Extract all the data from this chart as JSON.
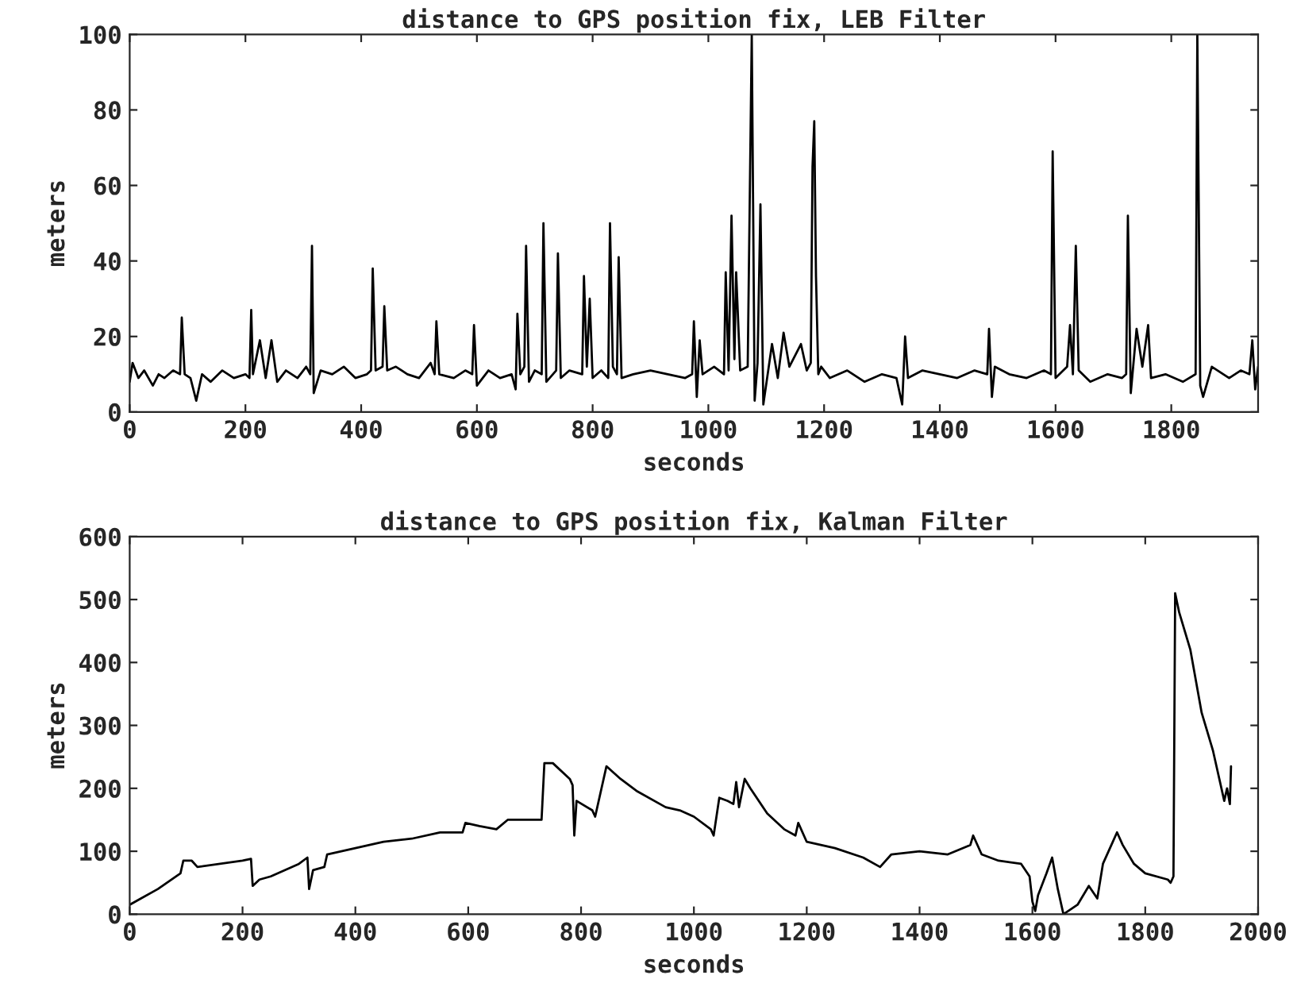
{
  "chart_data": [
    {
      "type": "line",
      "title": "distance to GPS position fix, LEB Filter",
      "xlabel": "seconds",
      "ylabel": "meters",
      "xlim": [
        0,
        1950
      ],
      "ylim": [
        0,
        100
      ],
      "xticks": [
        0,
        200,
        400,
        600,
        800,
        1000,
        1200,
        1400,
        1600,
        1800
      ],
      "yticks": [
        0,
        20,
        40,
        60,
        80,
        100
      ],
      "grid": false,
      "marker": "none",
      "line_style": "solid",
      "series": [
        {
          "color": "#000000",
          "x": [
            0,
            5,
            15,
            25,
            40,
            50,
            60,
            75,
            87,
            90,
            95,
            105,
            115,
            125,
            140,
            160,
            180,
            200,
            207,
            210,
            213,
            225,
            235,
            245,
            255,
            270,
            290,
            305,
            312,
            315,
            318,
            330,
            350,
            370,
            390,
            410,
            417,
            420,
            425,
            437,
            440,
            445,
            460,
            480,
            500,
            520,
            527,
            530,
            535,
            560,
            580,
            592,
            595,
            600,
            620,
            640,
            660,
            667,
            670,
            675,
            682,
            685,
            690,
            700,
            712,
            715,
            720,
            737,
            740,
            745,
            760,
            782,
            785,
            790,
            795,
            800,
            815,
            827,
            830,
            835,
            842,
            845,
            850,
            870,
            900,
            930,
            960,
            972,
            975,
            980,
            985,
            990,
            1010,
            1027,
            1030,
            1035,
            1040,
            1045,
            1048,
            1055,
            1068,
            1075,
            1080,
            1085,
            1090,
            1095,
            1110,
            1120,
            1130,
            1140,
            1160,
            1170,
            1177,
            1180,
            1183,
            1186,
            1190,
            1195,
            1210,
            1240,
            1270,
            1300,
            1325,
            1335,
            1340,
            1345,
            1370,
            1400,
            1430,
            1460,
            1482,
            1485,
            1490,
            1495,
            1520,
            1550,
            1580,
            1592,
            1595,
            1600,
            1620,
            1625,
            1630,
            1635,
            1640,
            1660,
            1690,
            1715,
            1722,
            1725,
            1730,
            1740,
            1750,
            1760,
            1765,
            1790,
            1820,
            1842,
            1845,
            1850,
            1855,
            1870,
            1900,
            1920,
            1935,
            1940,
            1945,
            1950
          ],
          "values": [
            8,
            13,
            9,
            11,
            7,
            10,
            9,
            11,
            10,
            25,
            10,
            9,
            3,
            10,
            8,
            11,
            9,
            10,
            9,
            27,
            10,
            19,
            9,
            19,
            8,
            11,
            9,
            12,
            10,
            44,
            5,
            11,
            10,
            12,
            9,
            10,
            11,
            38,
            11,
            12,
            28,
            11,
            12,
            10,
            9,
            13,
            10,
            24,
            10,
            9,
            11,
            10,
            23,
            7,
            11,
            9,
            10,
            6,
            26,
            10,
            12,
            44,
            8,
            11,
            10,
            50,
            8,
            11,
            42,
            9,
            11,
            10,
            36,
            12,
            30,
            9,
            11,
            9,
            50,
            12,
            10,
            41,
            9,
            10,
            11,
            10,
            9,
            10,
            24,
            4,
            19,
            10,
            12,
            10,
            37,
            11,
            52,
            14,
            37,
            11,
            12,
            100,
            3,
            13,
            55,
            2,
            18,
            9,
            21,
            12,
            18,
            11,
            13,
            65,
            77,
            36,
            10,
            12,
            9,
            11,
            8,
            10,
            9,
            2,
            20,
            9,
            11,
            10,
            9,
            11,
            10,
            22,
            4,
            12,
            10,
            9,
            11,
            10,
            69,
            9,
            12,
            23,
            10,
            44,
            11,
            8,
            10,
            9,
            10,
            52,
            5,
            22,
            12,
            23,
            9,
            10,
            8,
            10,
            100,
            7,
            4,
            12,
            9,
            11,
            10,
            19,
            6,
            12
          ]
        }
      ]
    },
    {
      "type": "line",
      "title": "distance to GPS position fix, Kalman Filter",
      "xlabel": "seconds",
      "ylabel": "meters",
      "xlim": [
        0,
        2000
      ],
      "ylim": [
        0,
        600
      ],
      "xticks": [
        0,
        200,
        400,
        600,
        800,
        1000,
        1200,
        1400,
        1600,
        1800,
        2000
      ],
      "yticks": [
        0,
        100,
        200,
        300,
        400,
        500,
        600
      ],
      "grid": false,
      "marker": "none",
      "line_style": "solid",
      "series": [
        {
          "color": "#000000",
          "x": [
            0,
            20,
            50,
            90,
            95,
            110,
            120,
            200,
            215,
            218,
            230,
            250,
            300,
            315,
            318,
            325,
            345,
            350,
            400,
            450,
            500,
            550,
            590,
            595,
            620,
            650,
            670,
            700,
            730,
            735,
            750,
            780,
            785,
            788,
            792,
            820,
            825,
            845,
            870,
            900,
            950,
            975,
            1000,
            1030,
            1035,
            1045,
            1060,
            1070,
            1075,
            1080,
            1090,
            1100,
            1130,
            1160,
            1180,
            1185,
            1200,
            1250,
            1300,
            1330,
            1350,
            1400,
            1450,
            1490,
            1495,
            1510,
            1540,
            1580,
            1595,
            1600,
            1605,
            1610,
            1625,
            1635,
            1645,
            1655,
            1680,
            1700,
            1715,
            1725,
            1740,
            1750,
            1760,
            1780,
            1800,
            1840,
            1845,
            1850,
            1853,
            1860,
            1880,
            1900,
            1920,
            1940,
            1945,
            1950,
            1952
          ],
          "values": [
            15,
            25,
            40,
            65,
            85,
            85,
            75,
            85,
            88,
            45,
            55,
            60,
            80,
            90,
            40,
            70,
            75,
            95,
            105,
            115,
            120,
            130,
            130,
            145,
            140,
            135,
            150,
            150,
            150,
            240,
            240,
            215,
            205,
            125,
            180,
            165,
            155,
            235,
            215,
            195,
            170,
            165,
            155,
            135,
            125,
            185,
            180,
            175,
            210,
            170,
            215,
            200,
            160,
            135,
            125,
            145,
            115,
            105,
            90,
            75,
            95,
            100,
            95,
            110,
            125,
            95,
            85,
            80,
            60,
            20,
            5,
            30,
            65,
            90,
            40,
            0,
            15,
            45,
            25,
            80,
            110,
            130,
            110,
            80,
            65,
            55,
            50,
            60,
            510,
            480,
            420,
            320,
            260,
            180,
            200,
            175,
            235
          ]
        }
      ]
    }
  ]
}
